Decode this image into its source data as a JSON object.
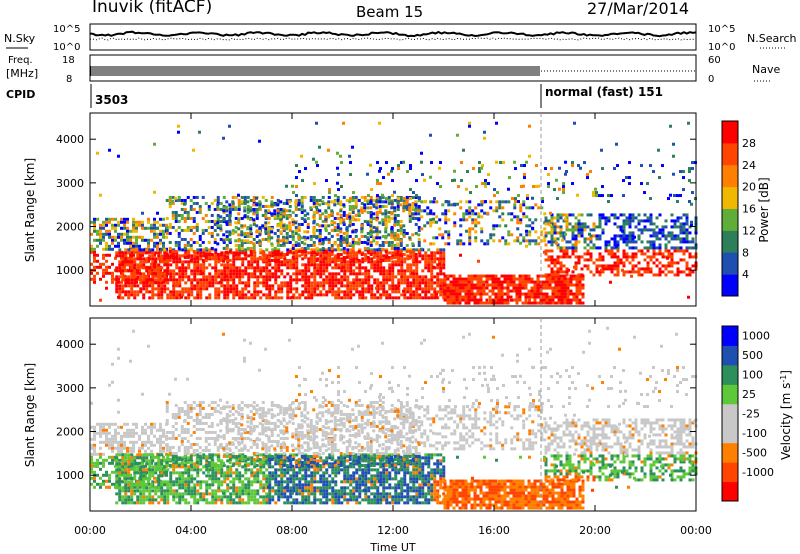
{
  "header": {
    "station": "Inuvik (fitACF)",
    "beam": "Beam 15",
    "date": "27/Mar/2014"
  },
  "top_panels": {
    "nsky_label": "N.Sky",
    "nsky_ticks": [
      "10^5",
      "10^0"
    ],
    "nsearch_label": "N.Search",
    "nsearch_ticks": [
      "10^5",
      "10^0"
    ],
    "freq_label_1": "Freq.",
    "freq_label_2": "[MHz]",
    "freq_ticks": [
      "18",
      "8"
    ],
    "nave_label": "Nave",
    "nave_ticks": [
      "60",
      "0"
    ],
    "cpid_label": "CPID",
    "cpid_first": "3503",
    "cpid_second": "normal (fast) 151"
  },
  "colors": {
    "power_scale": [
      "#0000ff",
      "#1f4fb0",
      "#2d7f5a",
      "#5fae3a",
      "#f0b800",
      "#ff8000",
      "#ff4500",
      "#ff0000"
    ],
    "velocity_scale": [
      "#ff0000",
      "#ff4500",
      "#ff8000",
      "#c8c8c8",
      "#c8c8c8",
      "#5fc83a",
      "#2d8f5a",
      "#1f4fb0",
      "#0000ff"
    ]
  },
  "chart_data": [
    {
      "type": "heatmap",
      "name_hint": "power",
      "ylabel": "Slant Range [km]",
      "yticks": [
        1000,
        2000,
        3000,
        4000
      ],
      "ylim": [
        180,
        4600
      ],
      "xticks": [
        "00:00",
        "04:00",
        "08:00",
        "12:00",
        "16:00",
        "20:00",
        "00:00"
      ],
      "xlim_hours": [
        0,
        24
      ],
      "colorbar_label": "Power [dB]",
      "colorbar_ticks": [
        "4",
        "8",
        "12",
        "16",
        "20",
        "24",
        "28"
      ]
    },
    {
      "type": "heatmap",
      "name_hint": "velocity",
      "ylabel": "Slant Range [km]",
      "yticks": [
        1000,
        2000,
        3000,
        4000
      ],
      "ylim": [
        180,
        4600
      ],
      "xticks": [
        "00:00",
        "04:00",
        "08:00",
        "12:00",
        "16:00",
        "20:00",
        "00:00"
      ],
      "xlim_hours": [
        0,
        24
      ],
      "xlabel": "Time UT",
      "colorbar_label": "Velocity [m s",
      "colorbar_label_sup": "-1",
      "colorbar_label_end": "]",
      "colorbar_ticks": [
        "1000",
        "500",
        "100",
        "25",
        "-25",
        "-100",
        "-500",
        "-1000"
      ]
    }
  ]
}
